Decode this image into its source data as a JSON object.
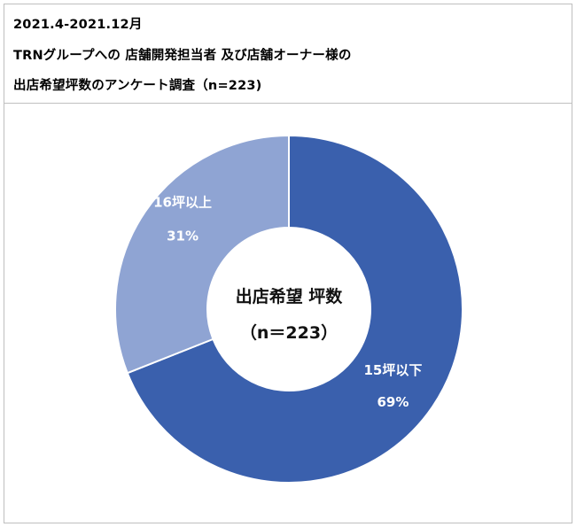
{
  "header": {
    "line1": "2021.4-2021.12月",
    "line2": "TRNグループへの 店舗開発担当者 及び店舗オーナー様の",
    "line3": "出店希望坪数のアンケート調査（n=223)"
  },
  "chart_data": {
    "type": "pie",
    "donut": true,
    "center_text": [
      "出店希望 坪数",
      "（n＝223）"
    ],
    "slices": [
      {
        "label": "15坪以下",
        "value": 69,
        "value_label": "69%",
        "color": "#3a60ad"
      },
      {
        "label": "16坪以上",
        "value": 31,
        "value_label": "31%",
        "color": "#8fa4d3"
      }
    ],
    "slice_border_color": "#ffffff",
    "legend": "none"
  }
}
